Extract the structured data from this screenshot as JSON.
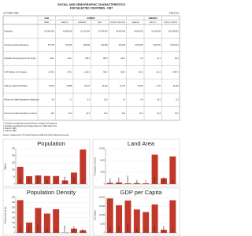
{
  "header": {
    "title": "SOCIAL AND DEMOGRAPHIC CHARACTERISTICS",
    "subtitle": "FOR SELECTED COUNTRIES - 1987",
    "date": "OCTOBER 1988",
    "table_no": "TABLE NO."
  },
  "table": {
    "groups": [
      "ASIA",
      "EUROPE",
      "AMERICA"
    ],
    "columns": [
      "JAPAN",
      "FRANCE",
      "GERMANY",
      "ITALY",
      "UNITED KINGDOM",
      "CANADA",
      "MEXICO",
      "UNITED STATES"
    ],
    "rows": [
      {
        "label": "Population",
        "cells": [
          "122,091,000",
          "55,884,000",
          "61,171,000",
          "57,400,000",
          "56,930,000",
          "25,652,000",
          "81,163,000",
          "243,934,000"
        ]
      },
      {
        "label": "Land Area (square kilometers)",
        "cells": [
          "377,708",
          "547,026",
          "248,630",
          "301,268",
          "244,046",
          "9,976,139",
          "1,972,547",
          "9,372,614"
        ]
      },
      {
        "label": "Population Density (persons per sq km)",
        "cells": [
          "323.2",
          "102.2",
          "246.0",
          "190.5",
          "233.3",
          "2.6",
          "41.1",
          "26.0"
        ]
      },
      {
        "label": "GDP (Billions of US Dollars)",
        "cells": [
          "2,376.0",
          "870.0",
          "1,118.0",
          "758.0",
          "669.0",
          "412.0",
          "141.0",
          "4,497.0"
        ]
      },
      {
        "label": "GDP per Capita (US Dollars)",
        "cells": [
          "19,461",
          "15,568",
          "18,277",
          "13,206",
          "11,751",
          "16,061",
          "1,737",
          "18,435"
        ]
      },
      {
        "label": "Percent of Civilian Population in Agriculture",
        "cells": [
          "8.3",
          "7.1",
          "5.2",
          "10.5",
          "2.4",
          "4.9",
          "26.0",
          "3.0"
        ]
      },
      {
        "label": "Percent of Civilian Population in Industry",
        "cells": [
          "33.8",
          "30.8",
          "40.5",
          "32.6",
          "29.8",
          "25.3",
          "20.0",
          "26.6"
        ]
      }
    ]
  },
  "notes": [
    "1. Excludes unemployed and armed forces; includes self-employed.",
    "2. Excludes unemployed; percentages based on civilian labor force.",
    "3. Data for 1986.",
    "4. Data for 1985."
  ],
  "source": "Source: Adapted from The World Factbook 1988 and OECD National Accounts.",
  "chart_data": [
    {
      "type": "bar",
      "title": "Population",
      "y_label": "Millions",
      "color": "#c0392b",
      "categories": [
        "Japan",
        "France",
        "Germany",
        "Italy",
        "U.K.",
        "Canada",
        "Mexico",
        "U.S."
      ],
      "values": [
        122.1,
        55.9,
        61.2,
        57.4,
        56.9,
        25.7,
        81.2,
        243.9
      ],
      "ylim": [
        0,
        250
      ],
      "yticks": [
        0,
        50,
        100,
        150,
        200,
        250
      ]
    },
    {
      "type": "bar",
      "title": "Land Area",
      "y_label": "Thousands of sq km",
      "color": "#c0392b",
      "categories": [
        "Japan",
        "France",
        "Germany",
        "Italy",
        "U.K.",
        "Canada",
        "Mexico",
        "U.S."
      ],
      "values": [
        377.7,
        547.0,
        248.6,
        301.3,
        244.0,
        9976.1,
        1972.5,
        9372.6
      ],
      "ylim": [
        0,
        12000
      ],
      "yticks": [
        0,
        {
          "value": 4000,
          "label": "4,000"
        },
        {
          "value": 8000,
          "label": "8,000"
        },
        {
          "value": 12000,
          "label": "12,000"
        }
      ]
    },
    {
      "type": "bar",
      "title": "Population Density",
      "y_label": "Persons per sq km",
      "color": "#c0392b",
      "categories": [
        "Japan",
        "France",
        "Germany",
        "Italy",
        "U.K.",
        "Canada",
        "Mexico",
        "U.S."
      ],
      "values": [
        323.2,
        102.2,
        246.0,
        190.5,
        233.3,
        2.6,
        41.1,
        26.0
      ],
      "ylim": [
        0,
        350
      ],
      "yticks": [
        0,
        50,
        100,
        150,
        200,
        250,
        300,
        350
      ]
    },
    {
      "type": "bar",
      "title": "GDP per Capita",
      "y_label": "US Dollars",
      "color": "#c0392b",
      "categories": [
        "Japan",
        "France",
        "Germany",
        "Italy",
        "U.K.",
        "Canada",
        "Mexico",
        "U.S."
      ],
      "values": [
        19461,
        15568,
        18277,
        13206,
        11751,
        16061,
        1737,
        18435
      ],
      "ylim": [
        0,
        20000
      ],
      "yticks": [
        0,
        {
          "value": 5000,
          "label": "5,000"
        },
        {
          "value": 10000,
          "label": "10,000"
        },
        {
          "value": 15000,
          "label": "15,000"
        },
        {
          "value": 20000,
          "label": "20,000"
        }
      ]
    }
  ]
}
